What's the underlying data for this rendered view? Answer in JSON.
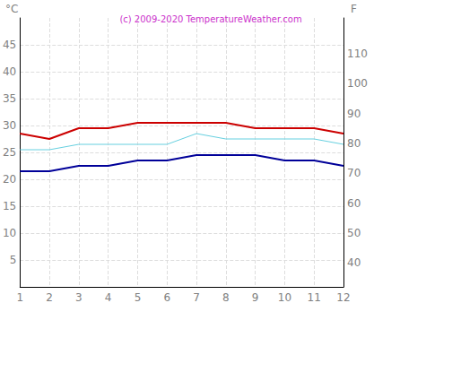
{
  "chart_data": {
    "type": "line",
    "title": "(c) 2009-2020 TemperatureWeather.com",
    "x": [
      1,
      2,
      3,
      4,
      5,
      6,
      7,
      8,
      9,
      10,
      11,
      12
    ],
    "series": [
      {
        "color": "#cc0000",
        "values": [
          28.5,
          27.5,
          29.5,
          29.5,
          30.5,
          30.5,
          30.5,
          30.5,
          29.5,
          29.5,
          29.5,
          28.5
        ]
      },
      {
        "color": "#66d0e0",
        "values": [
          25.5,
          25.5,
          26.5,
          26.5,
          26.5,
          26.5,
          28.5,
          27.5,
          27.5,
          27.5,
          27.5,
          26.5
        ]
      },
      {
        "color": "#000099",
        "values": [
          21.5,
          21.5,
          22.5,
          22.5,
          23.5,
          23.5,
          24.5,
          24.5,
          24.5,
          23.5,
          23.5,
          22.5
        ]
      }
    ],
    "xlim": [
      1,
      12
    ],
    "xticks": [
      1,
      2,
      3,
      4,
      5,
      6,
      7,
      8,
      9,
      10,
      11,
      12
    ],
    "ylim": [
      0,
      50
    ],
    "yticks": [
      5,
      10,
      15,
      20,
      25,
      30,
      35,
      40,
      45
    ],
    "y2lim": [
      32,
      122
    ],
    "y2ticks": [
      40,
      50,
      60,
      70,
      80,
      90,
      100,
      110
    ],
    "ylabel": "°C",
    "y2label": "F",
    "grid": true
  }
}
